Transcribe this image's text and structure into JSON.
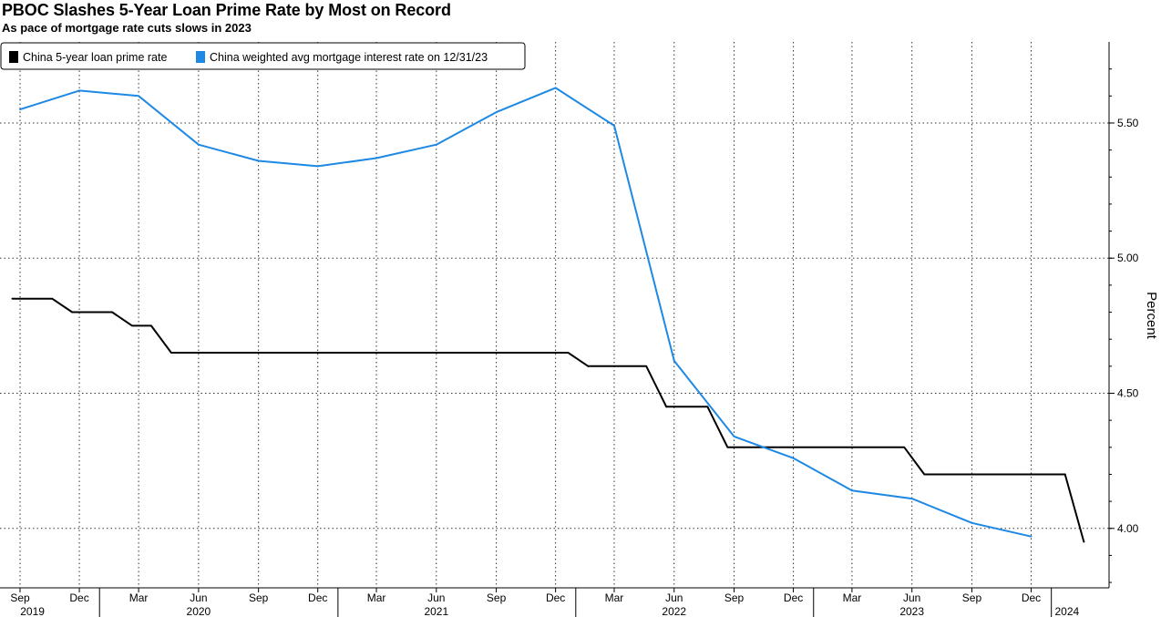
{
  "chart_data": {
    "type": "line",
    "title": "PBOC Slashes 5-Year Loan Prime Rate by Most on Record",
    "subtitle": "As pace of mortgage rate cuts slows in 2023",
    "ylabel": "Percent",
    "xlabel": "",
    "ylim": [
      3.78,
      5.8
    ],
    "yticks": [
      4.0,
      4.5,
      5.0,
      5.5
    ],
    "ytick_labels": [
      "4.00",
      "4.50",
      "5.00",
      "5.50"
    ],
    "xlim": [
      "2019-09-01",
      "2024-02-25"
    ],
    "x_month_ticks": [
      {
        "date": "2019-09-01",
        "label": "Sep"
      },
      {
        "date": "2019-12-01",
        "label": "Dec"
      },
      {
        "date": "2020-03-01",
        "label": "Mar"
      },
      {
        "date": "2020-06-01",
        "label": "Jun"
      },
      {
        "date": "2020-09-01",
        "label": "Sep"
      },
      {
        "date": "2020-12-01",
        "label": "Dec"
      },
      {
        "date": "2021-03-01",
        "label": "Mar"
      },
      {
        "date": "2021-06-01",
        "label": "Jun"
      },
      {
        "date": "2021-09-01",
        "label": "Sep"
      },
      {
        "date": "2021-12-01",
        "label": "Dec"
      },
      {
        "date": "2022-03-01",
        "label": "Mar"
      },
      {
        "date": "2022-06-01",
        "label": "Jun"
      },
      {
        "date": "2022-09-01",
        "label": "Sep"
      },
      {
        "date": "2022-12-01",
        "label": "Dec"
      },
      {
        "date": "2023-03-01",
        "label": "Mar"
      },
      {
        "date": "2023-06-01",
        "label": "Jun"
      },
      {
        "date": "2023-09-01",
        "label": "Sep"
      },
      {
        "date": "2023-12-01",
        "label": "Dec"
      }
    ],
    "x_year_labels": [
      {
        "date": "2019-09-20",
        "label": "2019"
      },
      {
        "date": "2020-06-01",
        "label": "2020"
      },
      {
        "date": "2021-06-01",
        "label": "2021"
      },
      {
        "date": "2022-06-01",
        "label": "2022"
      },
      {
        "date": "2023-06-01",
        "label": "2023"
      },
      {
        "date": "2024-01-25",
        "label": "2024"
      }
    ],
    "x_year_dividers": [
      "2020-01-01",
      "2021-01-01",
      "2022-01-01",
      "2023-01-01",
      "2024-01-01"
    ],
    "grid": true,
    "legend_position": "top-left",
    "series": [
      {
        "name": "China 5-year loan prime rate",
        "color": "#000000",
        "step": true,
        "points": [
          {
            "x": "2019-08-20",
            "y": 4.85
          },
          {
            "x": "2019-11-20",
            "y": 4.8
          },
          {
            "x": "2020-02-20",
            "y": 4.75
          },
          {
            "x": "2020-04-20",
            "y": 4.65
          },
          {
            "x": "2021-12-20",
            "y": 4.65
          },
          {
            "x": "2022-01-20",
            "y": 4.6
          },
          {
            "x": "2022-05-20",
            "y": 4.45
          },
          {
            "x": "2022-08-22",
            "y": 4.3
          },
          {
            "x": "2023-06-20",
            "y": 4.2
          },
          {
            "x": "2024-01-22",
            "y": 4.2
          },
          {
            "x": "2024-02-20",
            "y": 3.95
          }
        ]
      },
      {
        "name": "China weighted avg mortgage interest rate on 12/31/23",
        "color": "#1e88e5",
        "step": false,
        "points": [
          {
            "x": "2019-09-01",
            "y": 5.55
          },
          {
            "x": "2019-12-01",
            "y": 5.62
          },
          {
            "x": "2020-03-01",
            "y": 5.6
          },
          {
            "x": "2020-06-01",
            "y": 5.42
          },
          {
            "x": "2020-09-01",
            "y": 5.36
          },
          {
            "x": "2020-12-01",
            "y": 5.34
          },
          {
            "x": "2021-03-01",
            "y": 5.37
          },
          {
            "x": "2021-06-01",
            "y": 5.42
          },
          {
            "x": "2021-09-01",
            "y": 5.54
          },
          {
            "x": "2021-12-01",
            "y": 5.63
          },
          {
            "x": "2022-03-01",
            "y": 5.49
          },
          {
            "x": "2022-06-01",
            "y": 4.62
          },
          {
            "x": "2022-09-01",
            "y": 4.34
          },
          {
            "x": "2022-12-01",
            "y": 4.26
          },
          {
            "x": "2023-03-01",
            "y": 4.14
          },
          {
            "x": "2023-06-01",
            "y": 4.11
          },
          {
            "x": "2023-09-01",
            "y": 4.02
          },
          {
            "x": "2023-12-01",
            "y": 3.97
          }
        ]
      }
    ]
  }
}
